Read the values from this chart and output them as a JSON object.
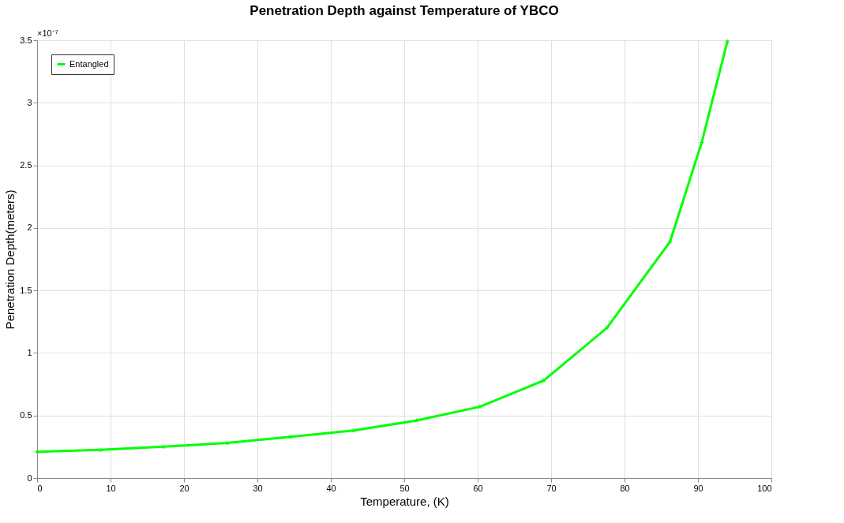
{
  "chart_data": {
    "type": "line",
    "title": "Penetration Depth against Temperature of YBCO",
    "xlabel": "Temperature, (K)",
    "ylabel": "Penetration Depth(meters)",
    "x": [
      0,
      8.6,
      17.2,
      25.9,
      34.5,
      43.1,
      51.7,
      60.3,
      69.0,
      77.6,
      86.2,
      90.5,
      94.0
    ],
    "series": [
      {
        "name": "Entangled",
        "color": "#00ff00",
        "values": [
          0.21,
          0.225,
          0.25,
          0.28,
          0.33,
          0.38,
          0.46,
          0.57,
          0.78,
          1.2,
          1.89,
          2.68,
          3.49
        ]
      }
    ],
    "xlim": [
      0,
      100
    ],
    "xticks": [
      0,
      10,
      20,
      30,
      40,
      50,
      60,
      70,
      80,
      90,
      100
    ],
    "ylim": [
      0,
      3.5
    ],
    "yticks": [
      0,
      0.5,
      1,
      1.5,
      2,
      2.5,
      3,
      3.5
    ],
    "annotations": [
      "×10⁻⁷"
    ],
    "grid": true,
    "legend": "top left",
    "marker": "star",
    "line_style": "solid"
  }
}
